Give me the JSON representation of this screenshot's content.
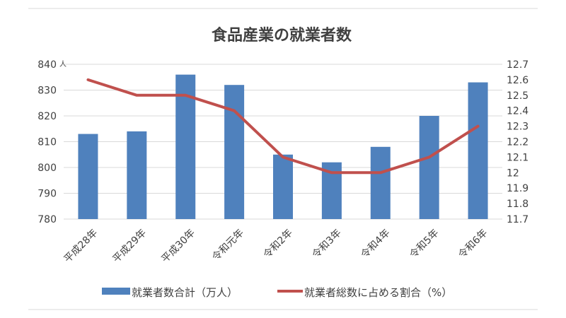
{
  "chart_data": {
    "type": "bar",
    "title": "食品産業の就業者数",
    "categories": [
      "平成28年",
      "平成29年",
      "平成30年",
      "令和元年",
      "令和2年",
      "令和3年",
      "令和4年",
      "令和5年",
      "令和6年"
    ],
    "left_axis": {
      "unit": "人",
      "min": 780,
      "max": 840,
      "ticks": [
        "780",
        "790",
        "800",
        "810",
        "820",
        "830",
        "840"
      ]
    },
    "right_axis": {
      "min": 11.7,
      "max": 12.7,
      "ticks": [
        "11.7",
        "11.8",
        "11.9",
        "12",
        "12.1",
        "12.2",
        "12.3",
        "12.4",
        "12.5",
        "12.6",
        "12.7"
      ]
    },
    "series": [
      {
        "name": "就業者数合計（万人）",
        "type": "bar",
        "axis": "left",
        "color": "#4f81bd",
        "values": [
          813,
          814,
          836,
          832,
          805,
          802,
          808,
          820,
          833
        ]
      },
      {
        "name": "就業者総数に占める割合（%）",
        "type": "line",
        "axis": "right",
        "color": "#c0504d",
        "values": [
          12.6,
          12.5,
          12.5,
          12.4,
          12.1,
          12.0,
          12.0,
          12.1,
          12.3
        ]
      }
    ],
    "grid": true,
    "legend_position": "bottom"
  }
}
